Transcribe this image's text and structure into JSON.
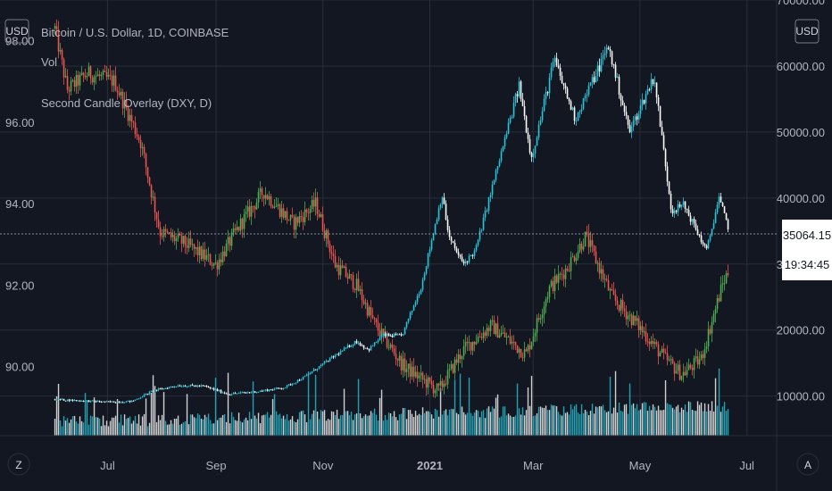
{
  "header": {
    "legend_title": "Bitcoin / U.S. Dollar, 1D, COINBASE",
    "legend_vol": "Vol",
    "legend_overlay": "Second Candle Overlay (DXY, D)"
  },
  "scale_buttons": {
    "left_currency": "USD",
    "right_currency": "USD",
    "left_corner": "Z",
    "right_corner": "A"
  },
  "price_label": {
    "value": "35064.15",
    "countdown": "19:34:45"
  },
  "colors": {
    "background": "#131722",
    "grid": "#2a2e39",
    "btc_up": "#26c6da",
    "btc_down": "#ffffff",
    "dxy_up": "#4caf50",
    "dxy_down": "#ef5350",
    "volume": "#ffffff",
    "volume_alt": "#26c6da"
  },
  "chart_data": {
    "type": "line",
    "title": "Bitcoin / U.S. Dollar, 1D, COINBASE",
    "x_ticks": [
      "Jul",
      "Sep",
      "Nov",
      "2021",
      "Mar",
      "May",
      "Jul"
    ],
    "left_axis": {
      "ticks": [
        "98.00",
        "96.00",
        "94.00",
        "92.00",
        "90.00"
      ],
      "range": [
        88.3,
        99.0
      ]
    },
    "right_axis": {
      "ticks": [
        "70000.00",
        "60000.00",
        "50000.00",
        "40000.00",
        "30000.00",
        "20000.00",
        "10000.00"
      ],
      "range": [
        4000,
        70000
      ]
    },
    "series": [
      {
        "name": "Bitcoin / U.S. Dollar, 1D, COINBASE",
        "axis": "right",
        "x": [
          "2020-06-01",
          "2020-06-15",
          "2020-07-01",
          "2020-07-15",
          "2020-07-27",
          "2020-08-10",
          "2020-08-25",
          "2020-09-08",
          "2020-09-25",
          "2020-10-10",
          "2020-10-21",
          "2020-11-05",
          "2020-11-20",
          "2020-11-27",
          "2020-12-05",
          "2020-12-16",
          "2020-12-27",
          "2021-01-08",
          "2021-01-12",
          "2021-01-20",
          "2021-01-27",
          "2021-02-08",
          "2021-02-21",
          "2021-02-28",
          "2021-03-13",
          "2021-03-25",
          "2021-04-13",
          "2021-04-25",
          "2021-05-09",
          "2021-05-19",
          "2021-05-26",
          "2021-06-08",
          "2021-06-15",
          "2021-06-21"
        ],
        "y": [
          9500,
          9300,
          9100,
          9200,
          10800,
          11600,
          11500,
          10300,
          10700,
          11300,
          12800,
          15600,
          18300,
          17000,
          19200,
          19100,
          26500,
          40600,
          34000,
          30000,
          32000,
          44000,
          57000,
          46000,
          61000,
          52000,
          63000,
          50000,
          58500,
          38000,
          39000,
          32000,
          40000,
          35064
        ]
      },
      {
        "name": "Second Candle Overlay (DXY, D)",
        "axis": "left",
        "x": [
          "2020-06-01",
          "2020-06-08",
          "2020-06-20",
          "2020-07-05",
          "2020-07-20",
          "2020-07-31",
          "2020-08-15",
          "2020-09-01",
          "2020-09-15",
          "2020-09-28",
          "2020-10-15",
          "2020-10-28",
          "2020-11-08",
          "2020-11-20",
          "2020-12-01",
          "2020-12-17",
          "2021-01-06",
          "2021-01-20",
          "2021-02-05",
          "2021-02-25",
          "2021-03-10",
          "2021-03-20",
          "2021-03-31",
          "2021-04-15",
          "2021-04-30",
          "2021-05-15",
          "2021-05-25",
          "2021-06-05",
          "2021-06-17",
          "2021-06-21"
        ],
        "y": [
          98.3,
          96.8,
          97.2,
          97.0,
          95.5,
          93.3,
          93.0,
          92.5,
          93.5,
          94.3,
          93.5,
          94.0,
          92.5,
          92.0,
          91.0,
          90.0,
          89.4,
          90.4,
          91.0,
          90.3,
          91.9,
          92.4,
          93.2,
          91.7,
          91.0,
          90.2,
          89.8,
          90.2,
          92.0,
          92.4
        ]
      }
    ],
    "volume": {
      "axis": "bottom",
      "note": "histogram"
    }
  }
}
